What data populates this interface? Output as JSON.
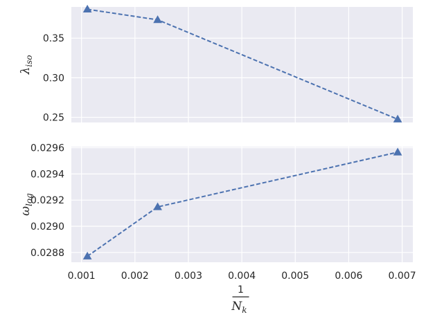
{
  "chart_data": [
    {
      "type": "line",
      "title": "",
      "ylabel": {
        "symbol": "λ",
        "sub": "iso"
      },
      "xlabel": "",
      "xlim": [
        0.00081,
        0.0072
      ],
      "ylim": [
        0.2435,
        0.3895
      ],
      "xticks": [
        0.001,
        0.002,
        0.003,
        0.004,
        0.005,
        0.006,
        0.007
      ],
      "xtick_labels_visible": false,
      "yticks": [
        0.25,
        0.3,
        0.35
      ],
      "ytick_labels": [
        "0.25",
        "0.30",
        "0.35"
      ],
      "grid": true,
      "series": [
        {
          "x": [
            0.00111,
            0.002425,
            0.006916
          ],
          "y": [
            0.3865,
            0.3732,
            0.2476
          ],
          "marker": "triangle",
          "linestyle": "dashed",
          "color": "#4c72b0"
        }
      ]
    },
    {
      "type": "line",
      "title": "",
      "ylabel": {
        "symbol": "ω",
        "sub": "log"
      },
      "xlabel": {
        "numerator": "1",
        "denominator": "N",
        "denominator_sub": "k"
      },
      "xlim": [
        0.00081,
        0.0072
      ],
      "ylim": [
        0.028725,
        0.029608
      ],
      "xticks": [
        0.001,
        0.002,
        0.003,
        0.004,
        0.005,
        0.006,
        0.007
      ],
      "xtick_labels": [
        "0.001",
        "0.002",
        "0.003",
        "0.004",
        "0.005",
        "0.006",
        "0.007"
      ],
      "yticks": [
        0.0288,
        0.029,
        0.0292,
        0.0294,
        0.0296
      ],
      "ytick_labels": [
        "0.0288",
        "0.0290",
        "0.0292",
        "0.0294",
        "0.0296"
      ],
      "grid": true,
      "series": [
        {
          "x": [
            0.00111,
            0.002425,
            0.006916
          ],
          "y": [
            0.028771,
            0.029148,
            0.029566
          ],
          "marker": "triangle",
          "linestyle": "dashed",
          "color": "#4c72b0"
        }
      ]
    }
  ],
  "colors": {
    "axes_background": "#eaeaf2",
    "grid": "#ffffff",
    "text": "#262626",
    "series": "#4c72b0"
  }
}
